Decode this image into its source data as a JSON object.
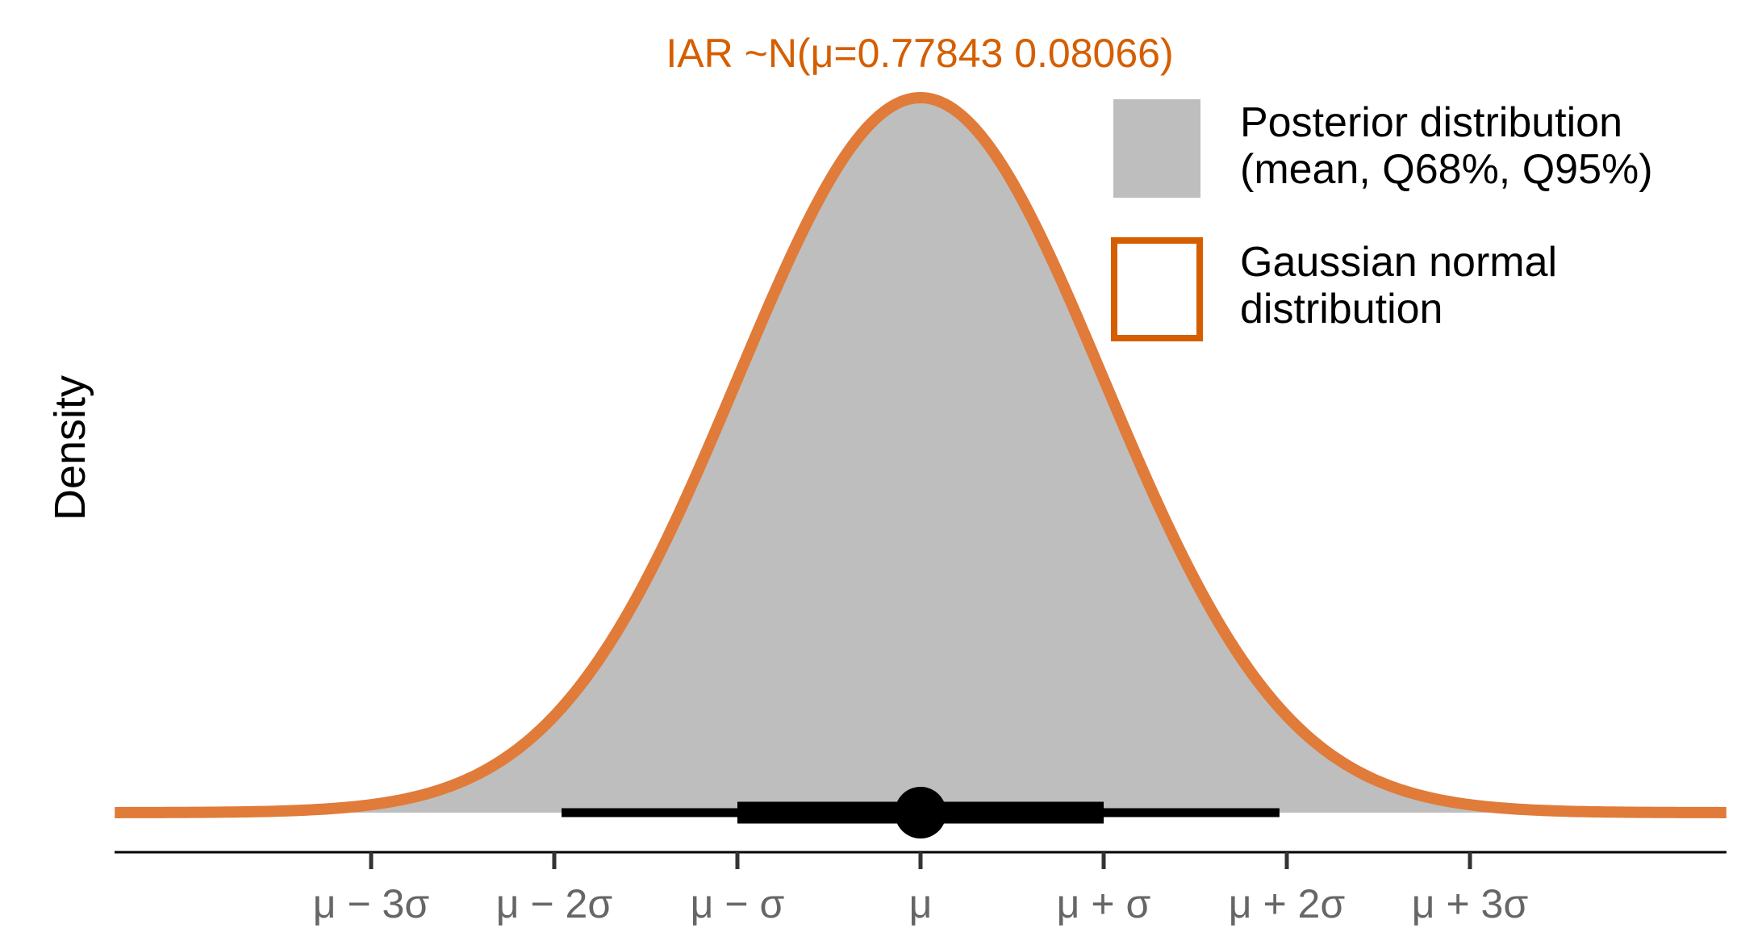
{
  "chart_data": {
    "type": "area",
    "title": "IAR ~N(μ=0.77843 0.08066)",
    "ylabel": "Density",
    "xlabel": "",
    "distribution": {
      "mean": 0.77843,
      "sd": 0.08066
    },
    "x_range_sd": [
      -4.4,
      4.4
    ],
    "xtick_positions_sd": [
      -3,
      -2,
      -1,
      0,
      1,
      2,
      3
    ],
    "xtick_labels": [
      "μ − 3σ",
      "μ − 2σ",
      "μ − σ",
      "μ",
      "μ + σ",
      "μ + 2σ",
      "μ + 3σ"
    ],
    "interval_bar": {
      "point_sd": 0,
      "q68_sd": [
        -1,
        1
      ],
      "q95_sd": [
        -1.96,
        1.96
      ]
    },
    "grid": false,
    "legend_position": "top-right",
    "legend": [
      {
        "label_lines": [
          "Posterior distribution",
          "(mean, Q68%, Q95%)"
        ],
        "style": "fill",
        "color": "#BEBEBE"
      },
      {
        "label_lines": [
          "Gaussian normal",
          "distribution"
        ],
        "style": "outline",
        "color": "#D55E00"
      }
    ],
    "colors": {
      "posterior_fill": "#BEBEBE",
      "gaussian_line": "#E07B39",
      "legend_outline": "#D55E00",
      "title": "#D55E00",
      "interval": "#000000",
      "tick_label": "#666666"
    }
  }
}
